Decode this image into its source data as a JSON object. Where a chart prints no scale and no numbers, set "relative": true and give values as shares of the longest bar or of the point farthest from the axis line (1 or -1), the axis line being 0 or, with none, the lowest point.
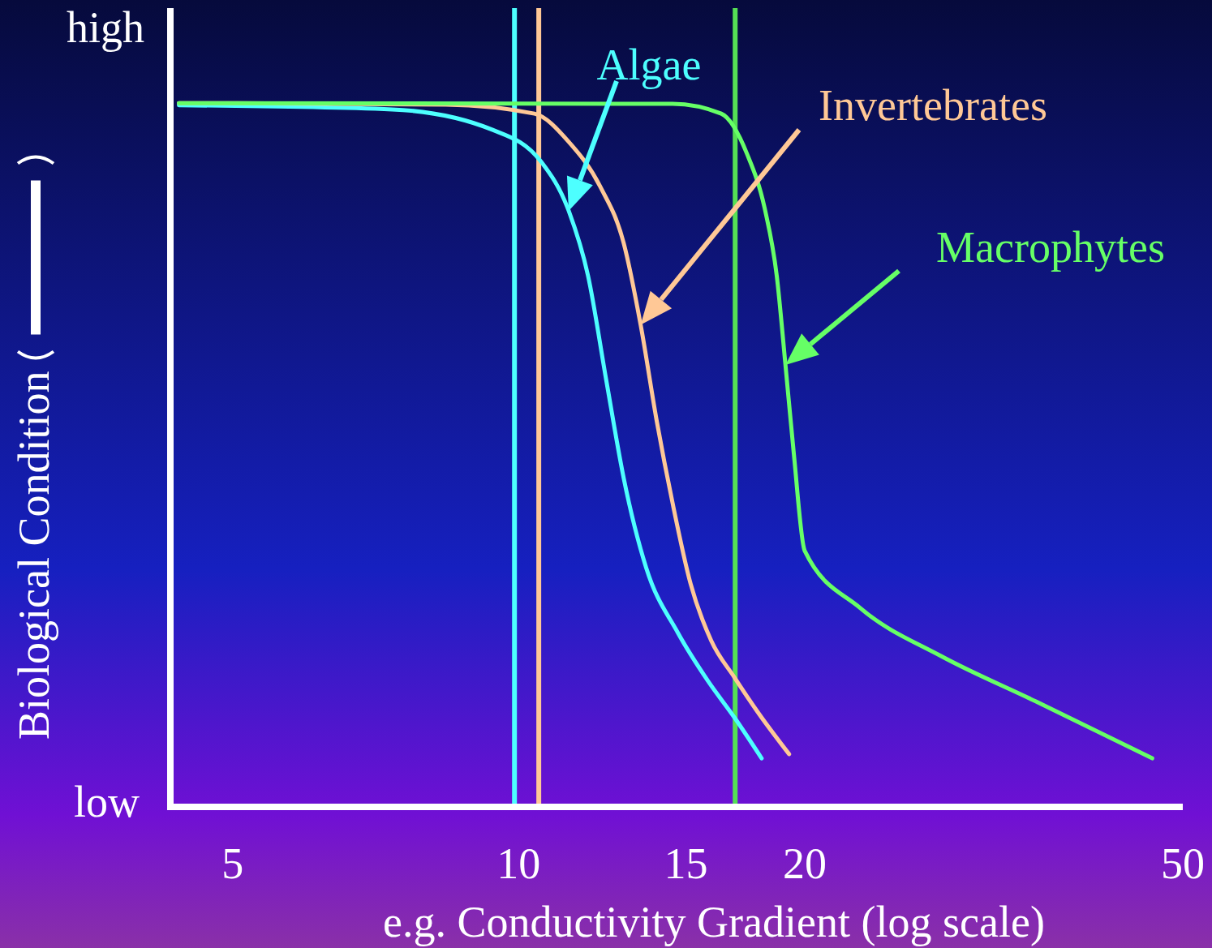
{
  "chart_data": {
    "type": "line",
    "relative": true,
    "xlabel": "e.g. Conductivity Gradient (log scale)",
    "ylabel": "Biological Condition",
    "log": "x",
    "xlim": [
      4.3,
      50
    ],
    "xticks": [
      5,
      10,
      15,
      20,
      50
    ],
    "annotations": [
      "high",
      "low"
    ],
    "ref_lines": [
      {
        "axis": "x",
        "value": 9.9,
        "color": "#4dffff"
      },
      {
        "axis": "x",
        "value": 10.5,
        "color": "#ffc896"
      },
      {
        "axis": "x",
        "value": 16.9,
        "color": "#55e055"
      }
    ],
    "series": [
      {
        "name": "Algae",
        "color": "#4dffff",
        "x": [
          4.39,
          7.36,
          9.39,
          10.57,
          11.29,
          11.83,
          12.37,
          12.9,
          13.62,
          14.7,
          15.82,
          16.87,
          18.02
        ],
        "values": [
          0.997,
          0.991,
          0.962,
          0.916,
          0.847,
          0.755,
          0.605,
          0.467,
          0.34,
          0.248,
          0.179,
          0.127,
          0.069
        ]
      },
      {
        "name": "Invertebrates",
        "color": "#ffc896",
        "x": [
          4.39,
          8.38,
          10.39,
          11.29,
          12.19,
          12.9,
          13.44,
          13.98,
          14.52,
          15.17,
          15.95,
          16.87,
          17.91,
          19.26
        ],
        "values": [
          1,
          0.998,
          0.985,
          0.945,
          0.881,
          0.801,
          0.685,
          0.547,
          0.432,
          0.317,
          0.236,
          0.184,
          0.132,
          0.075
        ]
      },
      {
        "name": "Macrophytes",
        "color": "#66ff66",
        "x": [
          4.39,
          14.52,
          16.34,
          17.39,
          18.17,
          18.69,
          19.09,
          19.48,
          20,
          22.86,
          27.86,
          35,
          46.43
        ],
        "values": [
          1,
          0.999,
          0.985,
          0.928,
          0.848,
          0.755,
          0.628,
          0.502,
          0.364,
          0.283,
          0.214,
          0.15,
          0.069
        ]
      }
    ]
  }
}
